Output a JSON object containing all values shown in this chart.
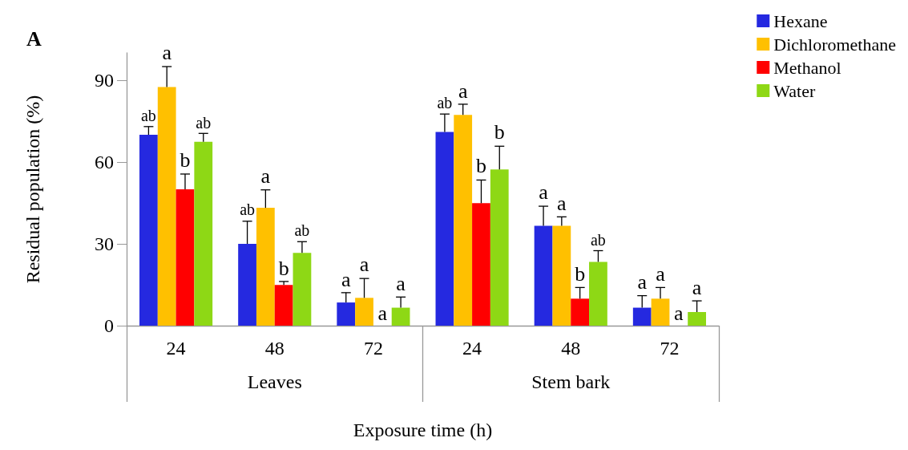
{
  "chart_data": {
    "type": "bar",
    "title": "A",
    "xlabel": "Exposure time (h)",
    "ylabel": "Residual population (%)",
    "categories": [
      "24",
      "48",
      "72",
      "24",
      "48",
      "72"
    ],
    "annotations": [
      "Leaves",
      "Stem bark"
    ],
    "series": [
      {
        "name": "Hexane",
        "color": "#2529e0",
        "values": [
          70,
          30,
          8.5,
          71,
          36.6,
          6.6
        ],
        "errors": [
          [
            70,
            73
          ],
          [
            30,
            38.3
          ],
          [
            8.5,
            12.1
          ],
          [
            71,
            77.6
          ],
          [
            36.6,
            43.8
          ],
          [
            6.6,
            11
          ]
        ],
        "value_labels": [
          "ab",
          "ab",
          "a",
          "ab",
          "a",
          "a"
        ]
      },
      {
        "name": "Dichloromethane",
        "color": "#ffc000",
        "values": [
          87.5,
          43.2,
          10.2,
          77.3,
          36.6,
          9.9
        ],
        "errors": [
          [
            87.5,
            95
          ],
          [
            43.2,
            49.8
          ],
          [
            10.2,
            17.3
          ],
          [
            77.3,
            81.2
          ],
          [
            36.6,
            39.9
          ],
          [
            9.9,
            14
          ]
        ],
        "value_labels": [
          "a",
          "a",
          "a",
          "a",
          "a",
          "a"
        ]
      },
      {
        "name": "Methanol",
        "color": "#ff0000",
        "values": [
          50,
          14.9,
          0,
          44.9,
          9.9,
          0
        ],
        "errors": [
          [
            50,
            55.6
          ],
          [
            14.9,
            16.2
          ],
          null,
          [
            44.9,
            53.4
          ],
          [
            9.9,
            14
          ],
          null
        ],
        "value_labels": [
          "b",
          "b",
          "a",
          "b",
          "b",
          "a"
        ]
      },
      {
        "name": "Water",
        "color": "#8ed815",
        "values": [
          67.4,
          26.7,
          6.6,
          57.3,
          23.4,
          5
        ],
        "errors": [
          [
            67.4,
            70.5
          ],
          [
            26.7,
            30.8
          ],
          [
            6.6,
            10.5
          ],
          [
            57.3,
            65.8
          ],
          [
            23.4,
            27.5
          ],
          [
            5,
            9.1
          ]
        ],
        "value_labels": [
          "ab",
          "ab",
          "a",
          "b",
          "ab",
          "a"
        ]
      }
    ],
    "ylim": [
      0,
      100
    ],
    "yticks": [
      0,
      30,
      60,
      90
    ],
    "grid": false,
    "legend": "top right"
  }
}
